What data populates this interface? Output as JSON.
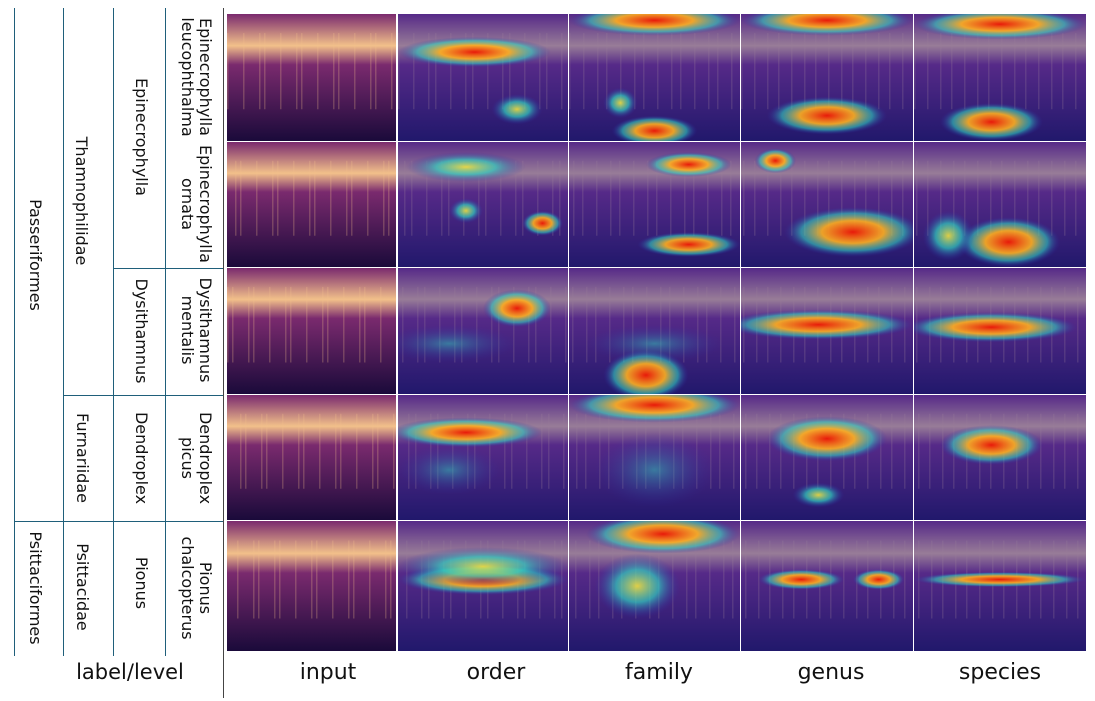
{
  "taxonomy": {
    "orders": [
      {
        "name": "Passeriformes"
      },
      {
        "name": "Psittaciformes"
      }
    ],
    "families": [
      {
        "name": "Thamnophilidae"
      },
      {
        "name": "Furnariidae"
      },
      {
        "name": "Psittacidae"
      }
    ],
    "genera": [
      {
        "name": "Epinecrophylla"
      },
      {
        "name": "Dysithamnus"
      },
      {
        "name": "Dendroplex"
      },
      {
        "name": "Pionus"
      }
    ],
    "species": [
      {
        "name": "Epinecrophylla\nleucophthalma"
      },
      {
        "name": "Epinecrophylla\nornata"
      },
      {
        "name": "Dysithamnus\nmentalis"
      },
      {
        "name": "Dendroplex\npicus"
      },
      {
        "name": "Pionus\nchalcopterus"
      }
    ]
  },
  "columns": [
    "input",
    "order",
    "family",
    "genus",
    "species"
  ],
  "corner_label": "label/level",
  "colors": {
    "divider": "#1f5f7a",
    "spectrogram_dark": "#1a0a3a",
    "spectrogram_mid": "#7a2a6e",
    "spectrogram_bright": "#f2c08a",
    "heat_low": "#2a2aa8",
    "heat_mid": "#30d0c0",
    "heat_high": "#e81a0a"
  },
  "heatmaps": [
    [
      {
        "kind": "input"
      },
      {
        "kind": "heat",
        "spots": [
          [
            0.45,
            0.3,
            0.45,
            0.12,
            "high"
          ],
          [
            0.7,
            0.75,
            0.15,
            0.12,
            "mid"
          ]
        ]
      },
      {
        "kind": "heat",
        "spots": [
          [
            0.5,
            0.05,
            0.5,
            0.12,
            "high"
          ],
          [
            0.5,
            0.92,
            0.25,
            0.12,
            "high"
          ],
          [
            0.3,
            0.7,
            0.1,
            0.12,
            "mid"
          ]
        ]
      },
      {
        "kind": "heat",
        "spots": [
          [
            0.5,
            0.05,
            0.5,
            0.12,
            "high"
          ],
          [
            0.5,
            0.8,
            0.35,
            0.15,
            "high"
          ]
        ]
      },
      {
        "kind": "heat",
        "spots": [
          [
            0.5,
            0.08,
            0.5,
            0.12,
            "high"
          ],
          [
            0.45,
            0.85,
            0.3,
            0.15,
            "high"
          ]
        ]
      }
    ],
    [
      {
        "kind": "input"
      },
      {
        "kind": "heat",
        "spots": [
          [
            0.4,
            0.2,
            0.35,
            0.12,
            "mid"
          ],
          [
            0.85,
            0.65,
            0.12,
            0.1,
            "high"
          ],
          [
            0.4,
            0.55,
            0.1,
            0.1,
            "mid"
          ]
        ]
      },
      {
        "kind": "heat",
        "spots": [
          [
            0.7,
            0.18,
            0.25,
            0.1,
            "high"
          ],
          [
            0.7,
            0.82,
            0.3,
            0.1,
            "high"
          ]
        ]
      },
      {
        "kind": "heat",
        "spots": [
          [
            0.65,
            0.72,
            0.4,
            0.2,
            "high"
          ],
          [
            0.2,
            0.15,
            0.12,
            0.1,
            "high"
          ]
        ]
      },
      {
        "kind": "heat",
        "spots": [
          [
            0.55,
            0.8,
            0.3,
            0.2,
            "high"
          ],
          [
            0.2,
            0.75,
            0.15,
            0.2,
            "mid"
          ]
        ]
      }
    ],
    [
      {
        "kind": "input"
      },
      {
        "kind": "heat",
        "spots": [
          [
            0.7,
            0.32,
            0.2,
            0.15,
            "high"
          ],
          [
            0.3,
            0.6,
            0.4,
            0.15,
            "low"
          ]
        ]
      },
      {
        "kind": "heat",
        "spots": [
          [
            0.45,
            0.85,
            0.25,
            0.2,
            "high"
          ],
          [
            0.5,
            0.6,
            0.4,
            0.15,
            "low"
          ]
        ]
      },
      {
        "kind": "heat",
        "spots": [
          [
            0.45,
            0.45,
            0.55,
            0.12,
            "high"
          ]
        ]
      },
      {
        "kind": "heat",
        "spots": [
          [
            0.45,
            0.47,
            0.5,
            0.12,
            "high"
          ]
        ]
      }
    ],
    [
      {
        "kind": "input"
      },
      {
        "kind": "heat",
        "spots": [
          [
            0.4,
            0.3,
            0.45,
            0.12,
            "high"
          ],
          [
            0.3,
            0.6,
            0.3,
            0.2,
            "low"
          ]
        ]
      },
      {
        "kind": "heat",
        "spots": [
          [
            0.5,
            0.08,
            0.5,
            0.14,
            "high"
          ],
          [
            0.5,
            0.6,
            0.35,
            0.3,
            "low"
          ]
        ]
      },
      {
        "kind": "heat",
        "spots": [
          [
            0.5,
            0.35,
            0.35,
            0.18,
            "high"
          ],
          [
            0.45,
            0.8,
            0.15,
            0.1,
            "mid"
          ]
        ]
      },
      {
        "kind": "heat",
        "spots": [
          [
            0.45,
            0.4,
            0.3,
            0.16,
            "high"
          ]
        ]
      }
    ],
    [
      {
        "kind": "input"
      },
      {
        "kind": "heat",
        "spots": [
          [
            0.5,
            0.45,
            0.5,
            0.12,
            "high"
          ],
          [
            0.5,
            0.35,
            0.5,
            0.15,
            "mid"
          ]
        ]
      },
      {
        "kind": "heat",
        "spots": [
          [
            0.55,
            0.1,
            0.45,
            0.15,
            "high"
          ],
          [
            0.4,
            0.5,
            0.25,
            0.25,
            "mid"
          ]
        ]
      },
      {
        "kind": "heat",
        "spots": [
          [
            0.35,
            0.45,
            0.25,
            0.08,
            "high"
          ],
          [
            0.8,
            0.45,
            0.15,
            0.08,
            "high"
          ]
        ]
      },
      {
        "kind": "heat",
        "spots": [
          [
            0.5,
            0.45,
            0.5,
            0.06,
            "high"
          ]
        ]
      }
    ]
  ]
}
